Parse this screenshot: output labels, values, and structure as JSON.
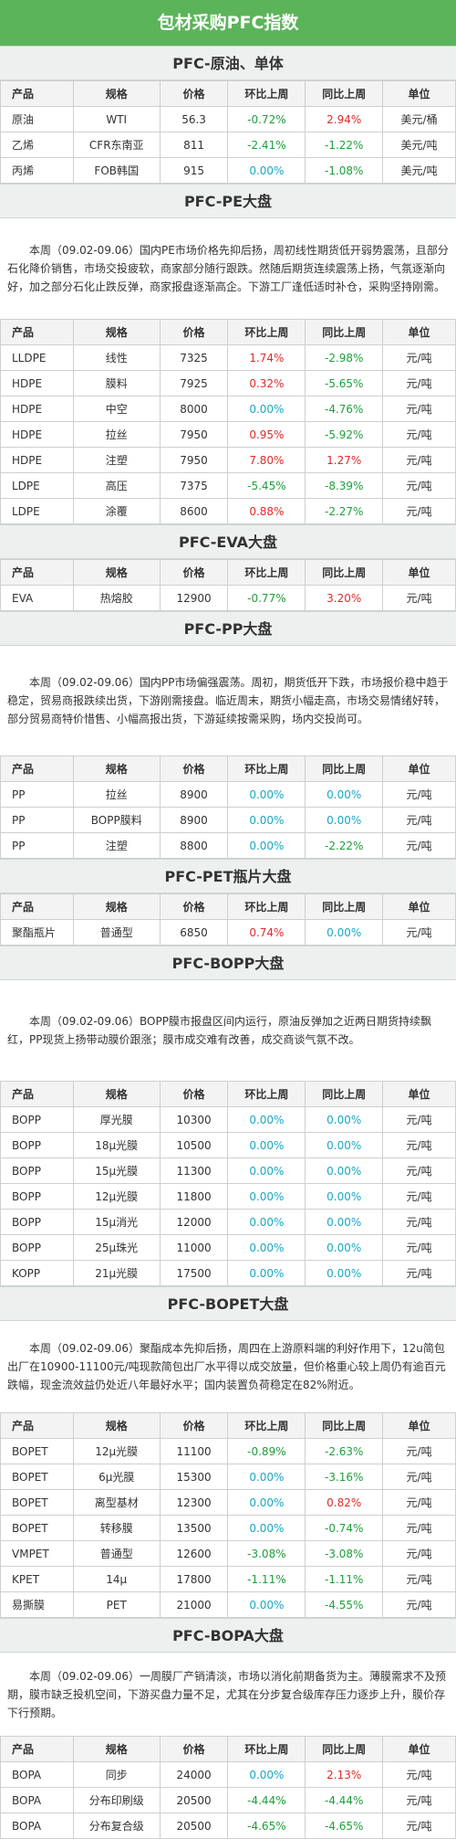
{
  "header": {
    "title": "包材采购PFC指数"
  },
  "sections": [
    {
      "title": "PFC-原油、单体",
      "table": {
        "columns": [
          "产品",
          "规格",
          "价格",
          "环比上周",
          "同比上周",
          "单位"
        ],
        "rows": [
          [
            "原油",
            "WTI",
            "56.3",
            "-0.72%",
            "2.94%",
            "美元/桶"
          ],
          [
            "乙烯",
            "CFR东南亚",
            "811",
            "-2.41%",
            "-1.22%",
            "美元/吨"
          ],
          [
            "丙烯",
            "FOB韩国",
            "915",
            "0.00%",
            "-1.08%",
            "美元/吨"
          ]
        ]
      }
    },
    {
      "title": "PFC-PE大盘",
      "paragraph": "本周（09.02-09.06）国内PE市场价格先抑后扬，周初线性期货低开弱势震荡，且部分石化降价销售，市场交投疲软，商家部分随行跟跌。然随后期货连续震荡上扬，气氛逐渐向好，加之部分石化止跌反弹，商家报盘逐渐高企。下游工厂逢低适时补仓，采购坚持刚需。",
      "table": {
        "columns": [
          "产品",
          "规格",
          "价格",
          "环比上周",
          "同比上周",
          "单位"
        ],
        "rows": [
          [
            "LLDPE",
            "线性",
            "7325",
            "1.74%",
            "-2.98%",
            "元/吨"
          ],
          [
            "HDPE",
            "膜料",
            "7925",
            "0.32%",
            "-5.65%",
            "元/吨"
          ],
          [
            "HDPE",
            "中空",
            "8000",
            "0.00%",
            "-4.76%",
            "元/吨"
          ],
          [
            "HDPE",
            "拉丝",
            "7950",
            "0.95%",
            "-5.92%",
            "元/吨"
          ],
          [
            "HDPE",
            "注塑",
            "7950",
            "7.80%",
            "1.27%",
            "元/吨"
          ],
          [
            "LDPE",
            "高压",
            "7375",
            "-5.45%",
            "-8.39%",
            "元/吨"
          ],
          [
            "LDPE",
            "涂覆",
            "8600",
            "0.88%",
            "-2.27%",
            "元/吨"
          ]
        ]
      }
    },
    {
      "title": "PFC-EVA大盘",
      "table": {
        "columns": [
          "产品",
          "规格",
          "价格",
          "环比上周",
          "同比上周",
          "单位"
        ],
        "rows": [
          [
            "EVA",
            "热熔胶",
            "12900",
            "-0.77%",
            "3.20%",
            "元/吨"
          ]
        ]
      }
    },
    {
      "title": "PFC-PP大盘",
      "paragraph": "本周（09.02-09.06）国内PP市场偏强震荡。周初，期货低开下跌，市场报价稳中趋于稳定，贸易商报跌续出货，下游刚需接盘。临近周末，期货小幅走高，市场交易情绪好转，部分贸易商特价惜售、小幅高报出货，下游延续按需采购，场内交投尚可。",
      "table": {
        "columns": [
          "产品",
          "规格",
          "价格",
          "环比上周",
          "同比上周",
          "单位"
        ],
        "rows": [
          [
            "PP",
            "拉丝",
            "8900",
            "0.00%",
            "0.00%",
            "元/吨"
          ],
          [
            "PP",
            "BOPP膜料",
            "8900",
            "0.00%",
            "0.00%",
            "元/吨"
          ],
          [
            "PP",
            "注塑",
            "8800",
            "0.00%",
            "-2.22%",
            "元/吨"
          ]
        ]
      }
    },
    {
      "title": "PFC-PET瓶片大盘",
      "table": {
        "columns": [
          "产品",
          "规格",
          "价格",
          "环比上周",
          "同比上周",
          "单位"
        ],
        "rows": [
          [
            "聚酯瓶片",
            "普通型",
            "6850",
            "0.74%",
            "0.00%",
            "元/吨"
          ]
        ]
      }
    },
    {
      "title": "PFC-BOPP大盘",
      "paragraph": "本周（09.02-09.06）BOPP膜市报盘区间内运行，原油反弹加之近两日期货持续飘红，PP现货上扬带动膜价跟涨；膜市成交难有改善，成交商谈气氛不改。",
      "table": {
        "columns": [
          "产品",
          "规格",
          "价格",
          "环比上周",
          "同比上周",
          "单位"
        ],
        "rows": [
          [
            "BOPP",
            "厚光膜",
            "10300",
            "0.00%",
            "0.00%",
            "元/吨"
          ],
          [
            "BOPP",
            "18μ光膜",
            "10500",
            "0.00%",
            "0.00%",
            "元/吨"
          ],
          [
            "BOPP",
            "15μ光膜",
            "11300",
            "0.00%",
            "0.00%",
            "元/吨"
          ],
          [
            "BOPP",
            "12μ光膜",
            "11800",
            "0.00%",
            "0.00%",
            "元/吨"
          ],
          [
            "BOPP",
            "15μ消光",
            "12000",
            "0.00%",
            "0.00%",
            "元/吨"
          ],
          [
            "BOPP",
            "25μ珠光",
            "11000",
            "0.00%",
            "0.00%",
            "元/吨"
          ],
          [
            "KOPP",
            "21μ光膜",
            "17500",
            "0.00%",
            "0.00%",
            "元/吨"
          ]
        ]
      }
    },
    {
      "title": "PFC-BOPET大盘",
      "paragraph": "本周（09.02-09.06）聚酯成本先抑后扬，周四在上游原料端的利好作用下，12u简包出厂在10900-11100元/吨现款简包出厂水平得以成交放量，但价格重心较上周仍有逾百元跌幅，现金流效益仍处近八年最好水平；国内装置负荷稳定在82%附近。",
      "table": {
        "columns": [
          "产品",
          "规格",
          "价格",
          "环比上周",
          "同比上周",
          "单位"
        ],
        "rows": [
          [
            "BOPET",
            "12μ光膜",
            "11100",
            "-0.89%",
            "-2.63%",
            "元/吨"
          ],
          [
            "BOPET",
            "6μ光膜",
            "15300",
            "0.00%",
            "-3.16%",
            "元/吨"
          ],
          [
            "BOPET",
            "离型基材",
            "12300",
            "0.00%",
            "0.82%",
            "元/吨"
          ],
          [
            "BOPET",
            "转移膜",
            "13500",
            "0.00%",
            "-0.74%",
            "元/吨"
          ],
          [
            "VMPET",
            "普通型",
            "12600",
            "-3.08%",
            "-3.08%",
            "元/吨"
          ],
          [
            "KPET",
            "14μ",
            "17800",
            "-1.11%",
            "-1.11%",
            "元/吨"
          ],
          [
            "易撕膜",
            "PET",
            "21000",
            "0.00%",
            "-4.55%",
            "元/吨"
          ]
        ]
      }
    },
    {
      "title": "PFC-BOPA大盘",
      "paragraph": "本周（09.02-09.06）一周膜厂产销清淡，市场以消化前期备货为主。薄膜需求不及预期，膜市缺乏投机空间，下游买盘力量不足，尤其在分步复合级库存压力逐步上升，膜价存下行预期。",
      "table": {
        "columns": [
          "产品",
          "规格",
          "价格",
          "环比上周",
          "同比上周",
          "单位"
        ],
        "rows": [
          [
            "BOPA",
            "同步",
            "24000",
            "0.00%",
            "2.13%",
            "元/吨"
          ],
          [
            "BOPA",
            "分布印刷级",
            "20500",
            "-4.44%",
            "-4.44%",
            "元/吨"
          ],
          [
            "BOPA",
            "分布复合级",
            "20500",
            "-4.65%",
            "-4.65%",
            "元/吨"
          ]
        ]
      }
    }
  ]
}
